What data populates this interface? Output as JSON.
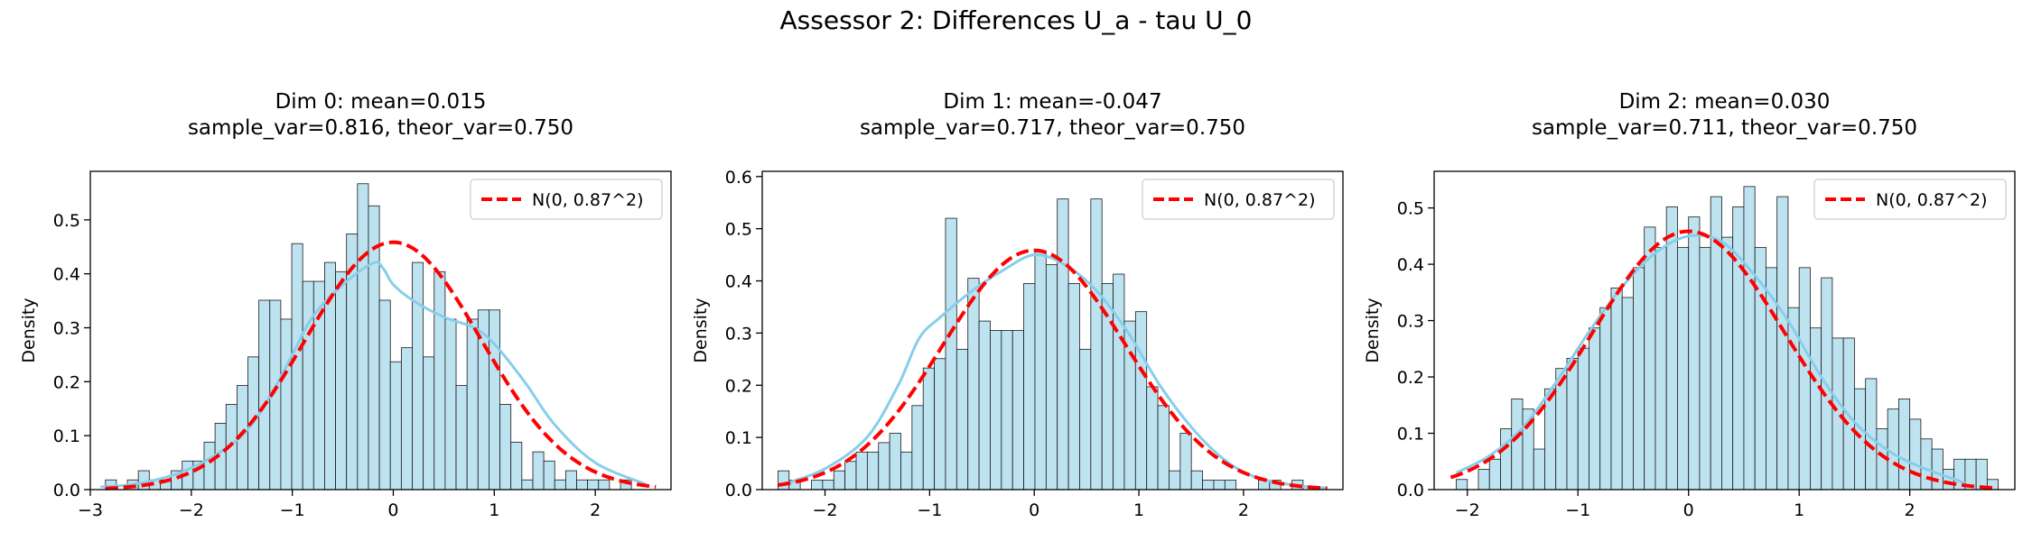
{
  "figure": {
    "suptitle": "Assessor 2: Differences U_a - tau U_0"
  },
  "colors": {
    "bar_fill": "#bde3f0",
    "bar_edge": "#1a1a1a",
    "kde": "#87ceeb",
    "normal": "#ff0000"
  },
  "chart_data": [
    {
      "type": "bar",
      "title_line1": "Dim 0: mean=0.015",
      "title_line2": "sample_var=0.816, theor_var=0.750",
      "ylabel": "Density",
      "xlim": [
        -3.0,
        2.75
      ],
      "ylim": [
        0,
        0.59
      ],
      "xticks": [
        -3,
        -2,
        -1,
        0,
        1,
        2
      ],
      "xtick_labels": [
        "−3",
        "−2",
        "−1",
        "0",
        "1",
        "2"
      ],
      "yticks": [
        0.0,
        0.1,
        0.2,
        0.3,
        0.4,
        0.5
      ],
      "ytick_labels": [
        "0.0",
        "0.1",
        "0.2",
        "0.3",
        "0.4",
        "0.5"
      ],
      "bin_start": -2.85,
      "bin_width": 0.1085,
      "values": [
        0.018,
        0,
        0.018,
        0.035,
        0.018,
        0.018,
        0.035,
        0.053,
        0.053,
        0.088,
        0.123,
        0.158,
        0.193,
        0.246,
        0.351,
        0.351,
        0.316,
        0.456,
        0.386,
        0.386,
        0.421,
        0.404,
        0.474,
        0.567,
        0.526,
        0.351,
        0.237,
        0.263,
        0.421,
        0.246,
        0.404,
        0.316,
        0.193,
        0.316,
        0.333,
        0.333,
        0.158,
        0.088,
        0.018,
        0.07,
        0.053,
        0.018,
        0.035,
        0.018,
        0.018,
        0.018,
        0,
        0.018
      ],
      "kde": {
        "x": [
          -2.9,
          -2.5,
          -2,
          -1.5,
          -1.2,
          -1,
          -0.8,
          -0.5,
          -0.2,
          -0.1,
          0,
          0.2,
          0.5,
          0.8,
          1,
          1.3,
          1.6,
          2,
          2.5
        ],
        "y": [
          0.005,
          0.012,
          0.04,
          0.1,
          0.18,
          0.25,
          0.32,
          0.38,
          0.42,
          0.41,
          0.38,
          0.35,
          0.32,
          0.3,
          0.27,
          0.2,
          0.12,
          0.05,
          0.01
        ]
      },
      "normal": {
        "mean": 0,
        "sd": 0.87,
        "label": "N(0, 0.87^2)"
      },
      "legend_position": "upper right"
    },
    {
      "type": "bar",
      "title_line1": "Dim 1: mean=-0.047",
      "title_line2": "sample_var=0.717, theor_var=0.750",
      "ylabel": "Density",
      "xlim": [
        -2.6,
        2.95
      ],
      "ylim": [
        0,
        0.61
      ],
      "xticks": [
        -2,
        -1,
        0,
        1,
        2
      ],
      "xtick_labels": [
        "−2",
        "−1",
        "0",
        "1",
        "2"
      ],
      "yticks": [
        0.0,
        0.1,
        0.2,
        0.3,
        0.4,
        0.5,
        0.6
      ],
      "ytick_labels": [
        "0.0",
        "0.1",
        "0.2",
        "0.3",
        "0.4",
        "0.5",
        "0.6"
      ],
      "bin_start": -2.45,
      "bin_width": 0.1068,
      "values": [
        0.036,
        0.018,
        0,
        0.018,
        0.018,
        0.036,
        0.054,
        0.072,
        0.072,
        0.09,
        0.108,
        0.072,
        0.161,
        0.233,
        0.251,
        0.52,
        0.269,
        0.405,
        0.323,
        0.305,
        0.305,
        0.305,
        0.395,
        0.457,
        0.431,
        0.557,
        0.395,
        0.269,
        0.557,
        0.395,
        0.413,
        0.323,
        0.341,
        0.197,
        0.161,
        0.036,
        0.108,
        0.036,
        0.018,
        0.018,
        0.018,
        0,
        0,
        0.018,
        0.018,
        0,
        0.018
      ],
      "kde": {
        "x": [
          -2.4,
          -2,
          -1.6,
          -1.3,
          -1.1,
          -0.9,
          -0.6,
          -0.3,
          0,
          0.3,
          0.6,
          0.9,
          1.2,
          1.5,
          1.8,
          2.1,
          2.5,
          2.8
        ],
        "y": [
          0.01,
          0.04,
          0.1,
          0.2,
          0.29,
          0.33,
          0.38,
          0.42,
          0.45,
          0.43,
          0.38,
          0.3,
          0.2,
          0.12,
          0.06,
          0.025,
          0.008,
          0.003
        ]
      },
      "normal": {
        "mean": 0,
        "sd": 0.87,
        "label": "N(0, 0.87^2)"
      },
      "legend_position": "upper right"
    },
    {
      "type": "bar",
      "title_line1": "Dim 2: mean=0.030",
      "title_line2": "sample_var=0.711, theor_var=0.750",
      "ylabel": "Density",
      "xlim": [
        -2.3,
        2.95
      ],
      "ylim": [
        0,
        0.565
      ],
      "xticks": [
        -2,
        -1,
        0,
        1,
        2
      ],
      "xtick_labels": [
        "−2",
        "−1",
        "0",
        "1",
        "2"
      ],
      "yticks": [
        0.0,
        0.1,
        0.2,
        0.3,
        0.4,
        0.5
      ],
      "ytick_labels": [
        "0.0",
        "0.1",
        "0.2",
        "0.3",
        "0.4",
        "0.5"
      ],
      "bin_start": -2.1,
      "bin_width": 0.1,
      "values": [
        0.018,
        0,
        0.036,
        0.054,
        0.108,
        0.161,
        0.143,
        0.072,
        0.179,
        0.215,
        0.233,
        0.251,
        0.287,
        0.323,
        0.358,
        0.341,
        0.394,
        0.466,
        0.43,
        0.502,
        0.43,
        0.484,
        0.43,
        0.52,
        0.448,
        0.502,
        0.538,
        0.43,
        0.394,
        0.52,
        0.323,
        0.394,
        0.287,
        0.376,
        0.269,
        0.269,
        0.179,
        0.197,
        0.108,
        0.143,
        0.161,
        0.125,
        0.09,
        0.072,
        0.036,
        0.054,
        0.054,
        0.054,
        0.018
      ],
      "kde": {
        "x": [
          -2.1,
          -1.8,
          -1.5,
          -1.2,
          -0.9,
          -0.6,
          -0.3,
          0,
          0.3,
          0.6,
          0.9,
          1.2,
          1.5,
          1.8,
          2.1,
          2.5
        ],
        "y": [
          0.03,
          0.06,
          0.11,
          0.19,
          0.28,
          0.36,
          0.42,
          0.45,
          0.44,
          0.38,
          0.3,
          0.2,
          0.12,
          0.07,
          0.04,
          0.012
        ]
      },
      "normal": {
        "mean": 0,
        "sd": 0.87,
        "label": "N(0, 0.87^2)"
      },
      "legend_position": "upper right"
    }
  ]
}
